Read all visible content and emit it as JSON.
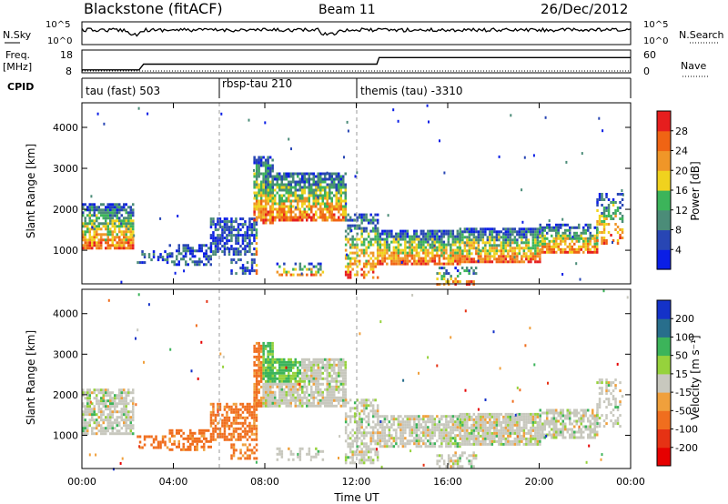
{
  "header": {
    "radar": "Blackstone (fitACF)",
    "beam": "Beam 11",
    "date": "26/Dec/2012"
  },
  "top_panels": {
    "nsky_label": "N.Sky",
    "nsearch_label": "N.Search",
    "freq_label_line1": "Freq.",
    "freq_label_line2": "[MHz]",
    "nave_label": "Nave",
    "cpid_label": "CPID",
    "noise_left_ticks": [
      "10^5",
      "10^0"
    ],
    "noise_right_ticks": [
      "10^5",
      "10^0"
    ],
    "freq_ticks": [
      "18",
      "8"
    ],
    "nave_ticks": [
      "60",
      "0"
    ]
  },
  "cpid_segments": [
    {
      "label": "tau (fast) 503",
      "start_h": 0
    },
    {
      "label": "rbsp-tau 210",
      "start_h": 6
    },
    {
      "label": "themis (tau) -3310",
      "start_h": 12
    }
  ],
  "colorbars": {
    "power": {
      "title": "Power [dB]",
      "ticks": [
        "4",
        "8",
        "12",
        "16",
        "20",
        "24",
        "28"
      ],
      "colors": [
        "#0a1ee6",
        "#2846b4",
        "#4b8c78",
        "#3cb45a",
        "#f0d21e",
        "#f09628",
        "#f06414",
        "#e61e1e"
      ]
    },
    "velocity": {
      "title": "Velocity [m s⁻¹]",
      "ticks": [
        "200",
        "100",
        "50",
        "15",
        "-15",
        "-50",
        "-100",
        "-200"
      ],
      "colors": [
        "#1432c8",
        "#286e8c",
        "#3cb45a",
        "#96d23c",
        "#c8c8be",
        "#f0a03c",
        "#f06e1e",
        "#e63214",
        "#e60000"
      ]
    }
  },
  "chart_data": [
    {
      "type": "line",
      "name": "noise",
      "series": [
        {
          "name": "N.Sky"
        },
        {
          "name": "N.Search"
        }
      ],
      "ylim_log": [
        0,
        5
      ]
    },
    {
      "type": "line",
      "name": "frequency-nave",
      "x": [
        0,
        2.5,
        2.7,
        12.9,
        13.0,
        24
      ],
      "series": [
        {
          "name": "Freq.",
          "values": [
            9.3,
            9.3,
            11.8,
            11.8,
            14.7,
            14.7
          ]
        }
      ],
      "ylim": [
        8,
        18
      ]
    },
    {
      "type": "heatmap",
      "name": "power",
      "xlabel": "Time UT",
      "ylabel": "Slant Range [km]",
      "xticks": [
        "00:00",
        "04:00",
        "08:00",
        "12:00",
        "16:00",
        "20:00",
        "00:00"
      ],
      "yticks": [
        "1000",
        "2000",
        "3000",
        "4000"
      ],
      "xlim_h": [
        0,
        24
      ],
      "ylim_km": [
        180,
        4600
      ],
      "regions": [
        {
          "t0": 0.0,
          "t1": 2.2,
          "r0": 1050,
          "r1": 2150,
          "density": 0.75
        },
        {
          "t0": 2.4,
          "t1": 3.8,
          "r0": 700,
          "r1": 1000,
          "density": 0.45
        },
        {
          "t0": 3.8,
          "t1": 5.6,
          "r0": 650,
          "r1": 1150,
          "density": 0.55
        },
        {
          "t0": 5.6,
          "t1": 7.6,
          "r0": 900,
          "r1": 1800,
          "density": 0.7
        },
        {
          "t0": 6.5,
          "t1": 7.6,
          "r0": 450,
          "r1": 800,
          "density": 0.5
        },
        {
          "t0": 7.5,
          "t1": 8.3,
          "r0": 1700,
          "r1": 3300,
          "density": 0.8
        },
        {
          "t0": 8.0,
          "t1": 11.5,
          "r0": 1750,
          "r1": 2900,
          "density": 0.82
        },
        {
          "t0": 8.5,
          "t1": 10.5,
          "r0": 400,
          "r1": 700,
          "density": 0.4
        },
        {
          "t0": 11.5,
          "t1": 12.9,
          "r0": 350,
          "r1": 1900,
          "density": 0.55
        },
        {
          "t0": 12.9,
          "t1": 16.5,
          "r0": 700,
          "r1": 1500,
          "density": 0.8
        },
        {
          "t0": 16.5,
          "t1": 20.0,
          "r0": 750,
          "r1": 1550,
          "density": 0.85
        },
        {
          "t0": 20.0,
          "t1": 22.5,
          "r0": 950,
          "r1": 1650,
          "density": 0.7
        },
        {
          "t0": 15.5,
          "t1": 17.2,
          "r0": 200,
          "r1": 600,
          "density": 0.45
        },
        {
          "t0": 22.5,
          "t1": 23.6,
          "r0": 1200,
          "r1": 2400,
          "density": 0.4
        }
      ]
    },
    {
      "type": "heatmap",
      "name": "velocity",
      "xlabel": "Time UT",
      "ylabel": "Slant Range [km]",
      "xticks": [
        "00:00",
        "04:00",
        "08:00",
        "12:00",
        "16:00",
        "20:00",
        "00:00"
      ],
      "yticks": [
        "1000",
        "2000",
        "3000",
        "4000"
      ],
      "xlim_h": [
        0,
        24
      ],
      "ylim_km": [
        180,
        4600
      ]
    }
  ]
}
